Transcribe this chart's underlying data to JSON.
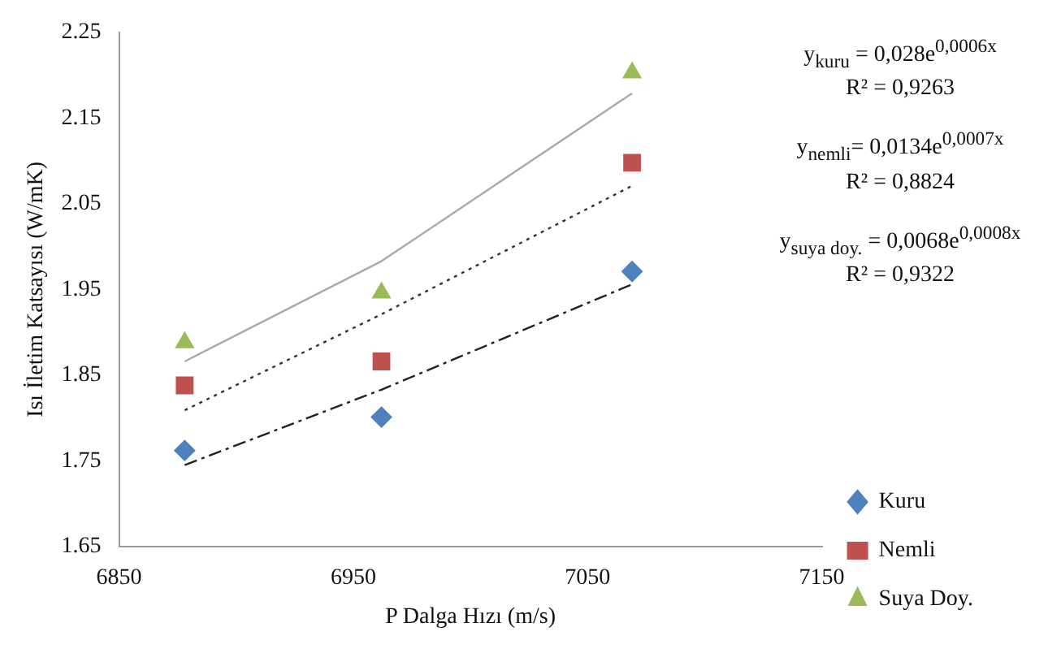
{
  "chart_data": {
    "type": "scatter",
    "xlabel": "P Dalga Hızı (m/s)",
    "ylabel": "Isı İletim Katsayısı (W/mK)",
    "xlim": [
      6850,
      7150
    ],
    "xticks": [
      6850,
      6950,
      7050,
      7150
    ],
    "ylim": [
      1.65,
      2.25
    ],
    "yticks": [
      1.65,
      1.75,
      1.85,
      1.95,
      2.05,
      2.15,
      2.25
    ],
    "grid": false,
    "legend": "bottom right",
    "series": [
      {
        "name": "Kuru",
        "type": "scatter",
        "marker": "diamond",
        "color": "#4f81bd",
        "x": [
          6878,
          6962,
          7069
        ],
        "values": [
          1.762,
          1.801,
          1.971
        ]
      },
      {
        "name": "Nemli",
        "type": "scatter",
        "marker": "square",
        "color": "#c0504d",
        "x": [
          6878,
          6962,
          7069
        ],
        "values": [
          1.838,
          1.866,
          2.098
        ]
      },
      {
        "name": "Suya Doy.",
        "type": "scatter",
        "marker": "triangle",
        "color": "#9bbb59",
        "x": [
          6878,
          6962,
          7069
        ],
        "values": [
          1.888,
          1.946,
          2.203
        ]
      },
      {
        "type": "line",
        "marker": "none",
        "line_style": "dashed",
        "color": "#222222",
        "x": [
          6878,
          6962,
          7069
        ],
        "values": [
          1.745,
          1.833,
          1.956
        ]
      },
      {
        "type": "line",
        "marker": "none",
        "line_style": "dotted",
        "color": "#333333",
        "x": [
          6878,
          6962,
          7069
        ],
        "values": [
          1.809,
          1.921,
          2.071
        ]
      },
      {
        "type": "line",
        "marker": "none",
        "line_style": "solid",
        "color": "#aaaaaa",
        "x": [
          6878,
          6962,
          7069
        ],
        "values": [
          1.866,
          1.983,
          2.179
        ]
      }
    ],
    "annotations": [
      "y$_{kuru}$ = 0,028e$^{0,0006x}$",
      "R² = 0,9263",
      "y$_{nemli}$= 0,0134e$^{0,0007x}$",
      "R² = 0,8824",
      "y$_{suya doy.}$ = 0,0068e$^{0,0008x}$",
      "R² = 0,9322"
    ]
  }
}
